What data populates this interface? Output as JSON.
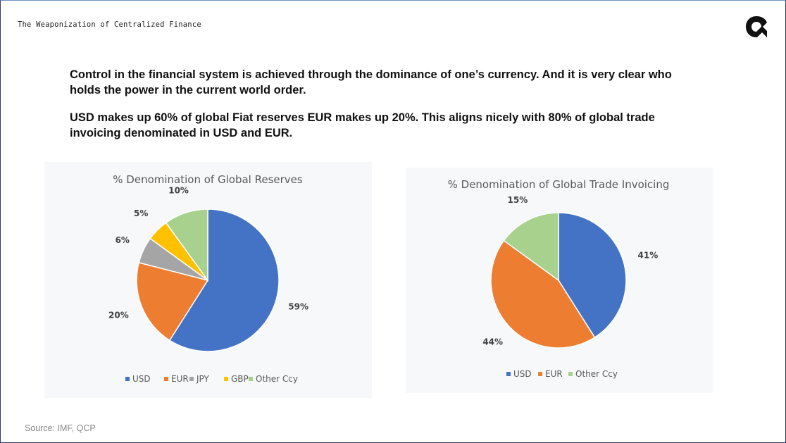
{
  "header": {
    "deck_title": "The Weaponization of Centralized Finance",
    "logo_icon": "q-logo-icon"
  },
  "body": {
    "paragraph_1": "Control in the financial system is achieved through the dominance of one’s currency. And it is very clear who holds the power in the current world order.",
    "paragraph_2": "USD makes up 60% of global Fiat reserves EUR makes up 20%. This aligns nicely with 80% of global trade invoicing denominated in USD and EUR."
  },
  "footer": {
    "source": "Source: IMF, QCP"
  },
  "chart_data": [
    {
      "type": "pie",
      "title": "% Denomination of Global Reserves",
      "categories": [
        "USD",
        "EUR",
        "JPY",
        "GBP",
        "Other Ccy"
      ],
      "values": [
        59,
        20,
        6,
        5,
        10
      ],
      "data_labels": [
        "59%",
        "20%",
        "6%",
        "5%",
        "10%"
      ],
      "colors": [
        "#4472c4",
        "#ed7d31",
        "#a5a5a5",
        "#ffc000",
        "#a9d18e"
      ],
      "legend": "bottom",
      "start": "top, clockwise"
    },
    {
      "type": "pie",
      "title": "% Denomination of Global Trade Invoicing",
      "categories": [
        "USD",
        "EUR",
        "Other Ccy"
      ],
      "values": [
        41,
        44,
        15
      ],
      "data_labels": [
        "41%",
        "44%",
        "15%"
      ],
      "colors": [
        "#4472c4",
        "#ed7d31",
        "#a9d18e"
      ],
      "legend": "bottom",
      "start": "top, clockwise"
    }
  ]
}
